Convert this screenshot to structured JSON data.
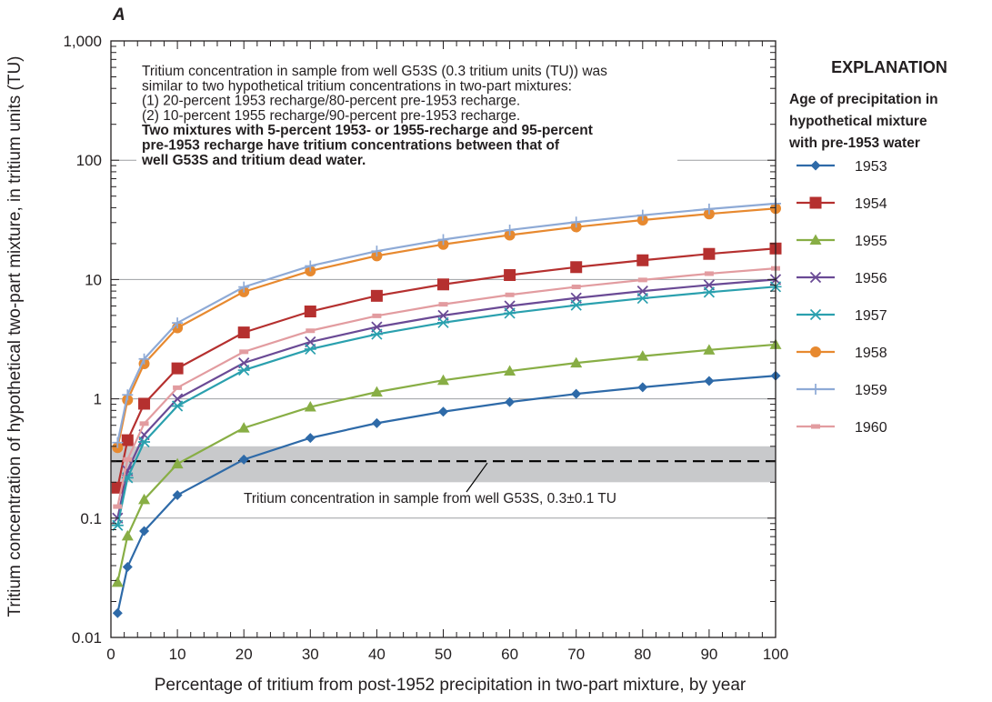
{
  "chart_data": {
    "type": "line",
    "panel_label": "A",
    "xlabel": "Percentage of tritium from post-1952 precipitation in two-part mixture, by year",
    "ylabel": "Tritium concentration of hypothetical two-part mixture, in tritium units (TU)",
    "xlim": [
      0,
      100
    ],
    "ylim": [
      0.01,
      1000
    ],
    "y_scale": "log",
    "x_ticks": [
      "0",
      "10",
      "20",
      "30",
      "40",
      "50",
      "60",
      "70",
      "80",
      "90",
      "100"
    ],
    "y_ticks": [
      {
        "value": 0.01,
        "label": "0.01"
      },
      {
        "value": 0.1,
        "label": "0.1"
      },
      {
        "value": 1,
        "label": "1"
      },
      {
        "value": 10,
        "label": "10"
      },
      {
        "value": 100,
        "label": "100"
      },
      {
        "value": 1000,
        "label": "1,000"
      }
    ],
    "grid": "horizontal at decades",
    "legend_title": "EXPLANATION",
    "legend_subtitle": [
      "Age of precipitation in",
      "hypothetical mixture",
      "with pre-1953 water"
    ],
    "legend_position": "right",
    "x": [
      1,
      2.5,
      5,
      10,
      20,
      30,
      40,
      50,
      60,
      70,
      80,
      90,
      100
    ],
    "series": [
      {
        "name": "1953",
        "color": "#2e6aa8",
        "marker": "diamond",
        "values": [
          0.016,
          0.039,
          0.078,
          0.156,
          0.31,
          0.47,
          0.625,
          0.78,
          0.94,
          1.1,
          1.25,
          1.41,
          1.56
        ]
      },
      {
        "name": "1954",
        "color": "#b5302f",
        "marker": "square",
        "values": [
          0.18,
          0.45,
          0.91,
          1.8,
          3.6,
          5.4,
          7.3,
          9.1,
          10.9,
          12.7,
          14.5,
          16.4,
          18.2
        ]
      },
      {
        "name": "1955",
        "color": "#88ae45",
        "marker": "triangle",
        "values": [
          0.029,
          0.071,
          0.143,
          0.285,
          0.57,
          0.855,
          1.14,
          1.43,
          1.71,
          2.0,
          2.28,
          2.57,
          2.85
        ]
      },
      {
        "name": "1956",
        "color": "#6a4a95",
        "marker": "x",
        "values": [
          0.1,
          0.25,
          0.5,
          1.0,
          2.0,
          3.0,
          4.0,
          5.0,
          6.0,
          7.0,
          8.0,
          9.0,
          10.0
        ]
      },
      {
        "name": "1957",
        "color": "#2aa0ae",
        "marker": "asterisk",
        "values": [
          0.087,
          0.218,
          0.435,
          0.87,
          1.74,
          2.61,
          3.48,
          4.35,
          5.22,
          6.09,
          6.96,
          7.83,
          8.7
        ]
      },
      {
        "name": "1958",
        "color": "#e7892f",
        "marker": "circle",
        "values": [
          0.39,
          0.98,
          1.97,
          3.94,
          7.9,
          11.8,
          15.8,
          19.7,
          23.6,
          27.6,
          31.5,
          35.5,
          39.4
        ]
      },
      {
        "name": "1959",
        "color": "#8eaad6",
        "marker": "plus",
        "values": [
          0.43,
          1.08,
          2.16,
          4.33,
          8.66,
          13.0,
          17.3,
          21.6,
          26.0,
          30.3,
          34.6,
          39.0,
          43.3
        ]
      },
      {
        "name": "1960",
        "color": "#e29ca0",
        "marker": "dash",
        "values": [
          0.125,
          0.31,
          0.62,
          1.24,
          2.48,
          3.72,
          4.96,
          6.2,
          7.44,
          8.68,
          9.92,
          11.2,
          12.4
        ]
      }
    ],
    "reference": {
      "label": "Tritium concentration in sample from well G53S, 0.3±0.1 TU",
      "value": 0.3,
      "band": [
        0.2,
        0.4
      ],
      "band_color": "#c8c9cb"
    },
    "annotation_lines": [
      "Tritium concentration in sample from well G53S (0.3 tritium units (TU)) was",
      "similar to two hypothetical tritium concentrations in two-part mixtures:",
      "(1) 20-percent 1953 recharge/80-percent pre-1953 recharge.",
      "(2) 10-percent 1955 recharge/90-percent pre-1953 recharge."
    ],
    "annotation_bold_lines": [
      "Two mixtures with 5-percent 1953- or 1955-recharge and 95-percent",
      "pre-1953 recharge have tritium concentrations between that of",
      "well G53S and tritium dead water."
    ]
  }
}
